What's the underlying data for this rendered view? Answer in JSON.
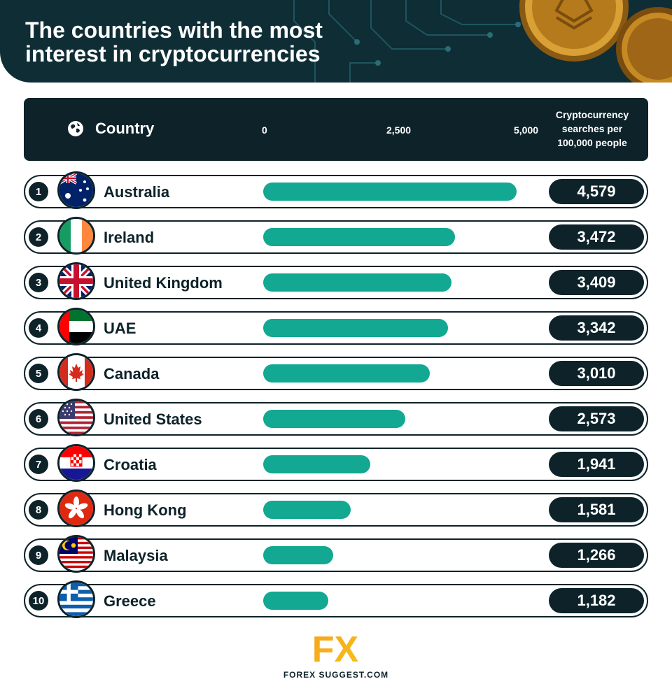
{
  "header": {
    "title_line1": "The countries with the most",
    "title_line2": "interest in cryptocurrencies"
  },
  "table": {
    "country_header": "Country",
    "value_header_lines": [
      "Cryptocurrency",
      "searches per",
      "100,000 people"
    ]
  },
  "chart_data": {
    "type": "bar",
    "orientation": "horizontal",
    "title": "The countries with the most interest in cryptocurrencies",
    "xlabel": "Cryptocurrency searches per 100,000 people",
    "ylabel": "Country",
    "xlim": [
      0,
      5000
    ],
    "ticks": [
      "0",
      "2,500",
      "5,000"
    ],
    "categories": [
      "Australia",
      "Ireland",
      "United Kingdom",
      "UAE",
      "Canada",
      "United States",
      "Croatia",
      "Hong Kong",
      "Malaysia",
      "Greece"
    ],
    "values": [
      4579,
      3472,
      3409,
      3342,
      3010,
      2573,
      1941,
      1581,
      1266,
      1182
    ],
    "labels": [
      "4,579",
      "3,472",
      "3,409",
      "3,342",
      "3,010",
      "2,573",
      "1,941",
      "1,581",
      "1,266",
      "1,182"
    ],
    "ranks": [
      "1",
      "2",
      "3",
      "4",
      "5",
      "6",
      "7",
      "8",
      "9",
      "10"
    ],
    "bar_color": "#12a892"
  },
  "flags": [
    "australia-flag-icon",
    "ireland-flag-icon",
    "united-kingdom-flag-icon",
    "uae-flag-icon",
    "canada-flag-icon",
    "united-states-flag-icon",
    "croatia-flag-icon",
    "hong-kong-flag-icon",
    "malaysia-flag-icon",
    "greece-flag-icon"
  ],
  "colors": {
    "dark": "#0d2229",
    "header_bg": "#0f2d35",
    "accent": "#12a892",
    "logo_orange": "#f7a21b"
  },
  "footer": {
    "logo_letters": "FX",
    "logo_text": "FOREX SUGGEST.COM"
  }
}
